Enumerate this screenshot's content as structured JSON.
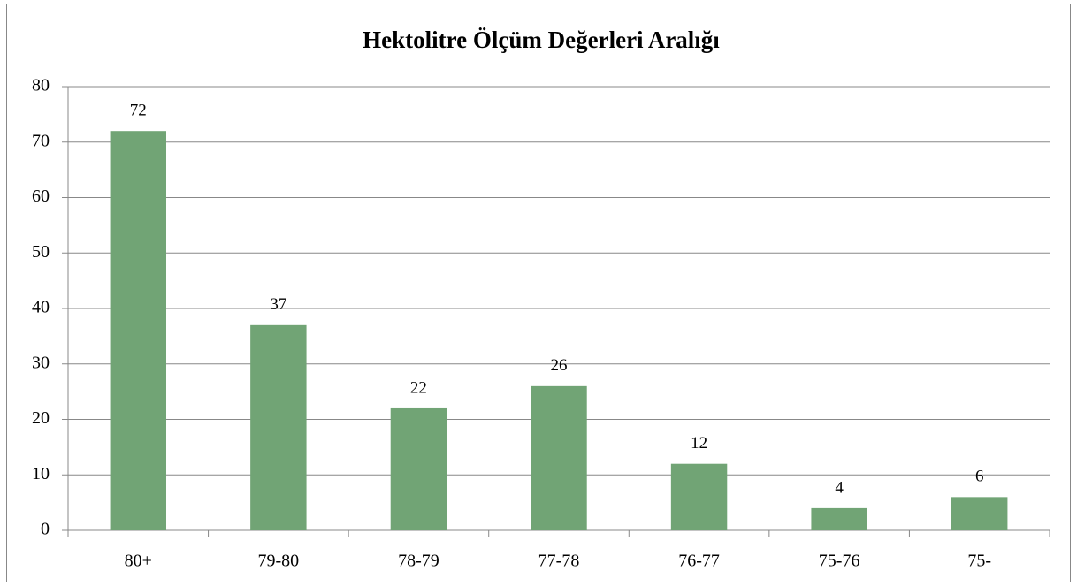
{
  "chart_data": {
    "type": "bar",
    "title": "Hektolitre Ölçüm Değerleri Aralığı",
    "categories": [
      "80+",
      "79-80",
      "78-79",
      "77-78",
      "76-77",
      "75-76",
      "75-"
    ],
    "values": [
      72,
      37,
      22,
      26,
      12,
      4,
      6
    ],
    "color": "#71a475",
    "ylim": [
      0,
      80
    ],
    "yticks": [
      0,
      10,
      20,
      30,
      40,
      50,
      60,
      70,
      80
    ],
    "grid": true
  }
}
